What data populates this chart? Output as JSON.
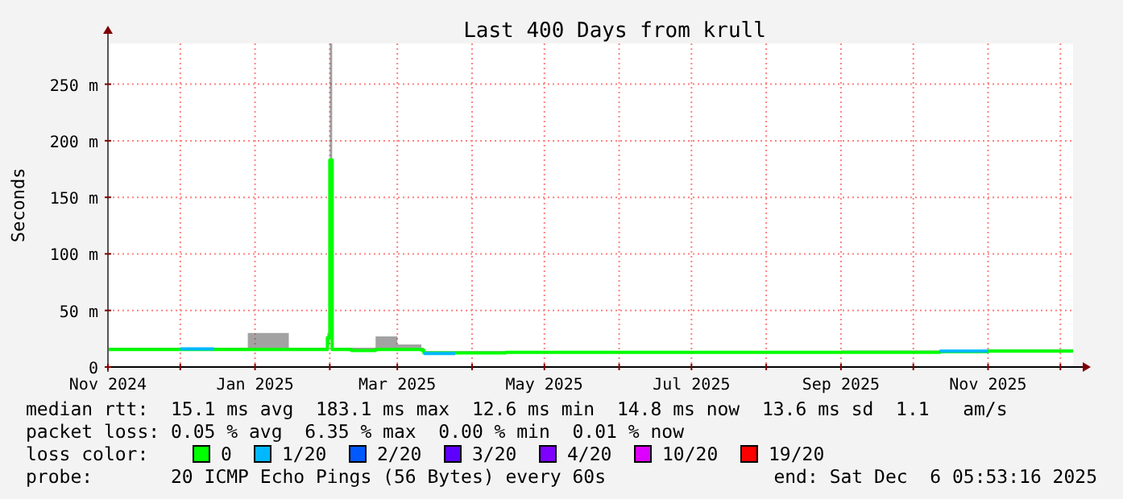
{
  "chart_data": {
    "type": "line",
    "title": "Last 400 Days from krull",
    "ylabel": "Seconds",
    "x": [
      "2024-11-01T05:53",
      "2024-11-15",
      "2024-12-01",
      "2024-12-15",
      "2024-12-29",
      "2025-01-15",
      "2025-01-29",
      "2025-01-31",
      "2025-02-01",
      "2025-02-02",
      "2025-02-10",
      "2025-02-20",
      "2025-03-01",
      "2025-03-11",
      "2025-03-12",
      "2025-03-25",
      "2025-04-15",
      "2025-05-10",
      "2025-06-01",
      "2025-07-01",
      "2025-08-01",
      "2025-09-01",
      "2025-10-01",
      "2025-10-12",
      "2025-11-01",
      "2025-12-06T05:53"
    ],
    "series": [
      {
        "name": "0",
        "color": "#00ff00",
        "values": [
          15.5,
          15.5,
          15.5,
          15.5,
          15.5,
          15.5,
          15.5,
          26,
          183,
          15.5,
          14.5,
          15.5,
          15.5,
          15,
          12.5,
          12.5,
          13,
          13,
          13,
          13,
          13,
          13,
          13,
          13.5,
          14,
          14
        ],
        "lower": [
          14.5,
          14.5,
          14.5,
          14.5,
          14.5,
          14.5,
          14.5,
          20,
          150,
          14.5,
          13.5,
          14.5,
          14.5,
          14,
          12,
          12,
          12,
          12,
          12,
          12,
          12,
          12.5,
          12.5,
          13,
          13,
          13.5
        ],
        "upper": [
          17,
          17,
          17,
          17,
          30,
          17,
          17,
          30,
          286,
          17,
          17,
          27,
          20,
          17,
          14,
          14,
          14,
          14,
          14,
          14,
          14,
          14.5,
          14.5,
          15,
          15.5,
          15.5
        ]
      },
      {
        "name": "1/20",
        "color": "#00b8ff",
        "values": [
          null,
          null,
          16,
          16,
          null,
          null,
          null,
          null,
          null,
          null,
          null,
          null,
          null,
          null,
          12,
          12,
          null,
          null,
          null,
          null,
          null,
          null,
          null,
          14,
          14,
          null
        ]
      },
      {
        "name": "2/20",
        "color": "#0059ff",
        "values": [
          null,
          null,
          null,
          null,
          null,
          null,
          null,
          null,
          null,
          null,
          null,
          null,
          null,
          null,
          null,
          null,
          null,
          null,
          null,
          null,
          null,
          null,
          null,
          null,
          null,
          null
        ]
      },
      {
        "name": "3/20",
        "color": "#5e00ff",
        "values": [
          null,
          null,
          null,
          null,
          null,
          null,
          null,
          null,
          null,
          null,
          null,
          null,
          null,
          null,
          null,
          null,
          null,
          null,
          null,
          null,
          null,
          null,
          null,
          null,
          null,
          null
        ]
      },
      {
        "name": "4/20",
        "color": "#7e00ff",
        "values": [
          null,
          null,
          null,
          null,
          null,
          null,
          null,
          null,
          null,
          null,
          null,
          null,
          null,
          null,
          null,
          null,
          null,
          null,
          null,
          null,
          null,
          null,
          null,
          null,
          null,
          null
        ]
      },
      {
        "name": "10/20",
        "color": "#dd00ff",
        "values": [
          null,
          null,
          null,
          null,
          null,
          null,
          null,
          null,
          null,
          null,
          null,
          null,
          null,
          null,
          null,
          null,
          null,
          null,
          null,
          null,
          null,
          null,
          null,
          null,
          null,
          null
        ]
      },
      {
        "name": "19/20",
        "color": "#ff0000",
        "values": [
          null,
          null,
          null,
          null,
          null,
          null,
          null,
          null,
          null,
          null,
          null,
          null,
          null,
          null,
          null,
          null,
          null,
          null,
          null,
          null,
          null,
          null,
          null,
          null,
          null,
          null
        ]
      }
    ],
    "xlim": [
      "2024-11-01",
      "2025-12-06T05:53"
    ],
    "xticks": [
      {
        "value": "2024-11-01",
        "label": "Nov 2024"
      },
      {
        "value": "2024-12-01",
        "label": null
      },
      {
        "value": "2025-01-01",
        "label": "Jan 2025"
      },
      {
        "value": "2025-02-01",
        "label": null
      },
      {
        "value": "2025-03-01",
        "label": "Mar 2025"
      },
      {
        "value": "2025-04-01",
        "label": null
      },
      {
        "value": "2025-05-01",
        "label": "May 2025"
      },
      {
        "value": "2025-06-01",
        "label": null
      },
      {
        "value": "2025-07-01",
        "label": "Jul 2025"
      },
      {
        "value": "2025-08-01",
        "label": null
      },
      {
        "value": "2025-09-01",
        "label": "Sep 2025"
      },
      {
        "value": "2025-10-01",
        "label": null
      },
      {
        "value": "2025-11-01",
        "label": "Nov 2025"
      },
      {
        "value": "2025-12-01",
        "label": null
      }
    ],
    "ylim": [
      0,
      286
    ],
    "yticks": [
      {
        "value": 0,
        "label": "0"
      },
      {
        "value": 50,
        "label": "50 m"
      },
      {
        "value": 100,
        "label": "100 m"
      },
      {
        "value": 150,
        "label": "150 m"
      },
      {
        "value": 200,
        "label": "200 m"
      },
      {
        "value": 250,
        "label": "250 m"
      }
    ],
    "grid": true,
    "legend": "bottom",
    "legend_title": "loss color:",
    "marker": "none",
    "line_style": "solid",
    "annotations": [
      "median rtt:  15.1 ms avg  183.1 ms max  12.6 ms min  14.8 ms now  13.6 ms sd  1.1   am/s",
      "packet loss: 0.05 % avg  6.35 % max  0.00 % min  0.01 % now",
      "probe:       20 ICMP Echo Pings (56 Bytes) every 60s",
      "end: Sat Dec  6 05:53:16 2025"
    ]
  }
}
